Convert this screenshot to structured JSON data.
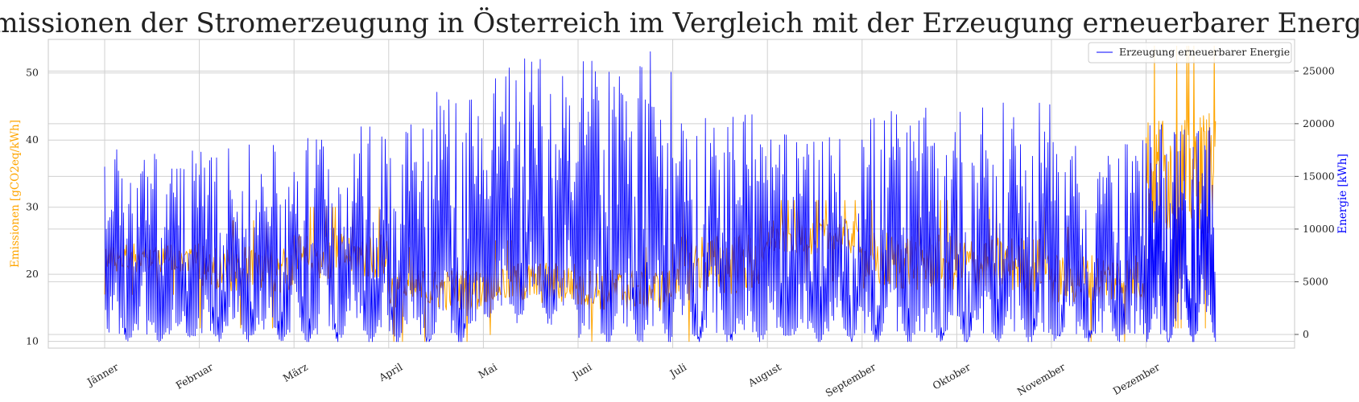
{
  "chart_data": {
    "type": "line",
    "title": "Emissionen der Stromerzeugung in Österreich im Vergleich mit der Erzeugung erneuerbarer Energie",
    "xlabel": "",
    "x_ticks": [
      "Jänner",
      "Februar",
      "März",
      "April",
      "Mai",
      "Juni",
      "Juli",
      "August",
      "September",
      "Oktober",
      "November",
      "Dezember"
    ],
    "y_left": {
      "label": "Emissionen [gCO2eq/kWh]",
      "ylim": [
        9,
        55
      ],
      "ticks": [
        10,
        20,
        30,
        40,
        50
      ],
      "color": "#ffa500"
    },
    "y_right": {
      "label": "Energie [kWh]",
      "ylim": [
        -1300,
        28000
      ],
      "ticks": [
        0,
        5000,
        10000,
        15000,
        20000,
        25000
      ],
      "color": "#0000ff"
    },
    "grid": true,
    "legend": {
      "placement": "top-right",
      "entries": [
        "Erzeugung erneuerbarer Energie"
      ]
    },
    "series": [
      {
        "name": "Emissionen",
        "axis": "left",
        "color": "#ffa500",
        "monthly_peak_approx": [
          27,
          28,
          30,
          24,
          25,
          24,
          31,
          31,
          31,
          30,
          27,
          54
        ],
        "monthly_trough_approx": [
          17,
          12,
          14,
          10,
          11,
          10,
          10,
          19,
          11,
          11,
          10,
          12
        ]
      },
      {
        "name": "Erzeugung erneuerbarer Energie",
        "axis": "right",
        "color": "#0000ff",
        "monthly_peak_approx": [
          18000,
          18000,
          20000,
          24000,
          26500,
          27000,
          22000,
          19000,
          21500,
          22000,
          18500,
          20500
        ],
        "monthly_trough_approx": [
          0,
          0,
          0,
          0,
          2000,
          0,
          0,
          0,
          0,
          0,
          0,
          0
        ]
      }
    ]
  }
}
